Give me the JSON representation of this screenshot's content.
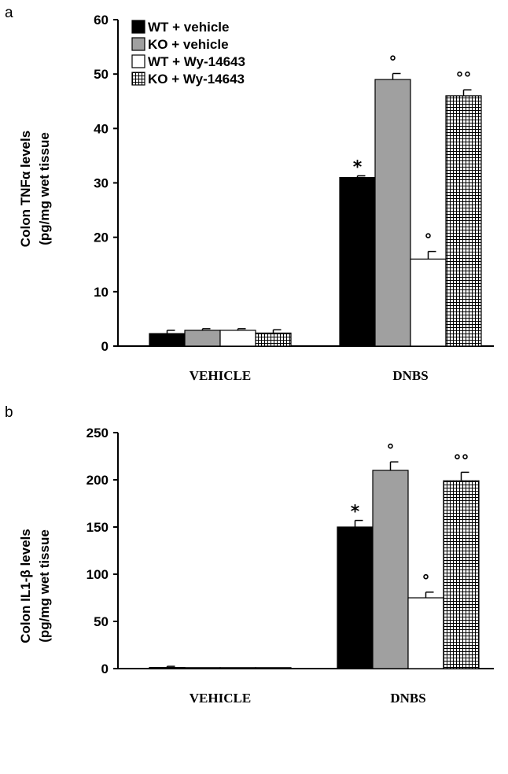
{
  "chart_data": [
    {
      "type": "bar",
      "panel_label": "a",
      "ylabel": [
        "Colon TNFα levels",
        "(pg/mg wet tissue"
      ],
      "ylim": [
        0,
        60
      ],
      "yticks": [
        0,
        10,
        20,
        30,
        40,
        50,
        60
      ],
      "categories": [
        "VEHICLE",
        "DNBS"
      ],
      "legend_position": "top-left",
      "series": [
        {
          "name": "WT + vehicle",
          "fill": "#000000",
          "pattern": "solid",
          "values": [
            2.3,
            31.0
          ],
          "errors": [
            0.6,
            0.3
          ],
          "annotations": [
            "",
            "*"
          ]
        },
        {
          "name": "KO + vehicle",
          "fill": "#a0a0a0",
          "pattern": "solid",
          "values": [
            2.9,
            49.0
          ],
          "errors": [
            0.3,
            1.1
          ],
          "annotations": [
            "",
            "°"
          ]
        },
        {
          "name": "WT + Wy-14643",
          "fill": "#ffffff",
          "pattern": "solid",
          "values": [
            2.9,
            16.0
          ],
          "errors": [
            0.3,
            1.4
          ],
          "annotations": [
            "",
            "°"
          ]
        },
        {
          "name": "KO + Wy-14643",
          "fill": "#ffffff",
          "pattern": "grid",
          "values": [
            2.4,
            46.0
          ],
          "errors": [
            0.6,
            1.1
          ],
          "annotations": [
            "",
            "°°"
          ]
        }
      ]
    },
    {
      "type": "bar",
      "panel_label": "b",
      "ylabel": [
        "Colon IL1-β levels",
        "(pg/mg wet tissue"
      ],
      "ylim": [
        0,
        250
      ],
      "yticks": [
        0,
        50,
        100,
        150,
        200,
        250
      ],
      "categories": [
        "VEHICLE",
        "DNBS"
      ],
      "series": [
        {
          "name": "WT + vehicle",
          "fill": "#000000",
          "pattern": "solid",
          "values": [
            1.2,
            150.0
          ],
          "errors": [
            1.2,
            7.0
          ],
          "annotations": [
            "",
            "*"
          ]
        },
        {
          "name": "KO + vehicle",
          "fill": "#a0a0a0",
          "pattern": "solid",
          "values": [
            1.0,
            210.0
          ],
          "errors": [
            0,
            9.0
          ],
          "annotations": [
            "",
            "°"
          ]
        },
        {
          "name": "WT + Wy-14643",
          "fill": "#ffffff",
          "pattern": "solid",
          "values": [
            1.0,
            75.0
          ],
          "errors": [
            0,
            6.0
          ],
          "annotations": [
            "",
            "°"
          ]
        },
        {
          "name": "KO + Wy-14643",
          "fill": "#ffffff",
          "pattern": "grid",
          "values": [
            1.0,
            199.0
          ],
          "errors": [
            0,
            9.0
          ],
          "annotations": [
            "",
            "°°"
          ]
        }
      ]
    }
  ]
}
